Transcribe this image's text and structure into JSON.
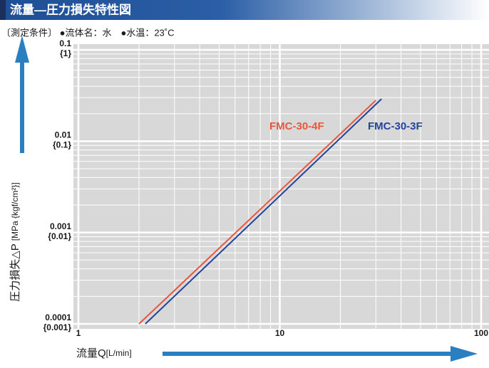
{
  "chart_data": {
    "type": "line",
    "title": "流量―圧力損失特性図",
    "subtitle": "〔測定条件〕 ●流体名：水　●水温：23˚C",
    "x_label": "流量Q",
    "x_unit": "[L/min]",
    "y_label": "圧力損失△P",
    "y_unit": "[MPa {kgf/cm²}]",
    "log_x": true,
    "log_y": true,
    "grid": true,
    "minor_grid": true,
    "xlim": [
      1,
      100
    ],
    "xticks": [
      1,
      10,
      100
    ],
    "ylim": [
      0.0001,
      0.1
    ],
    "yticks": [
      0.0001,
      0.001,
      0.01,
      0.1
    ],
    "ytick_sublabels": [
      "{0.001}",
      "{0.01}",
      "{0.1}",
      "{1}"
    ],
    "series": [
      {
        "name": "FMC-30-4F",
        "color": "#e8563f",
        "x": [
          2,
          30
        ],
        "values": [
          0.0001,
          0.028
        ]
      },
      {
        "name": "FMC-30-3F",
        "color": "#24449a",
        "x": [
          2.15,
          32
        ],
        "values": [
          0.0001,
          0.029
        ]
      }
    ]
  }
}
